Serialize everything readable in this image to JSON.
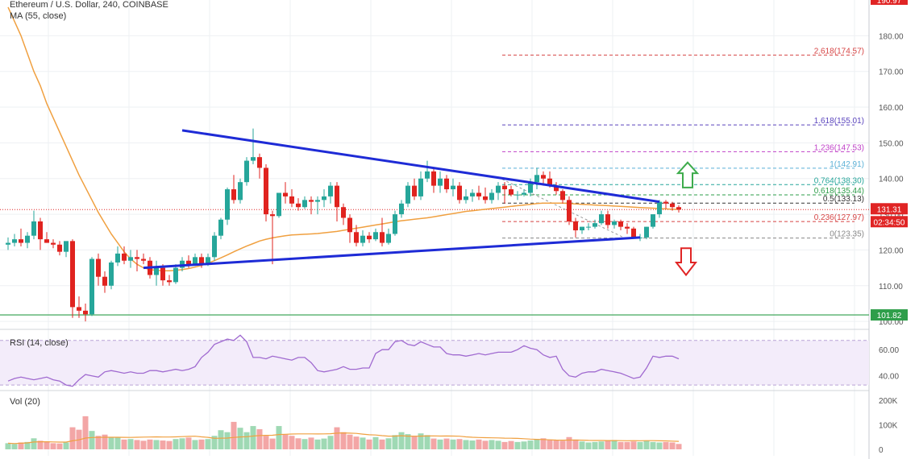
{
  "header": {
    "title": "Ethereum / U.S. Dollar, 240, COINBASE",
    "ma_label": "MA (55, close)"
  },
  "chart_data": [
    {
      "type": "candlestick",
      "title": "Ethereum / U.S. Dollar, 240, COINBASE",
      "ylim": [
        98,
        190
      ],
      "y_ticks": [
        100,
        110,
        120,
        130,
        140,
        150,
        160,
        170,
        180
      ],
      "y_tick_labels": [
        "100.00",
        "110.00",
        "120.00",
        "130.00",
        "140.00",
        "150.00",
        "160.00",
        "170.00",
        "180.00"
      ],
      "candles": [
        [
          121.5,
          123.5,
          120,
          122
        ],
        [
          122,
          124.5,
          121,
          123
        ],
        [
          123,
          126,
          121,
          122
        ],
        [
          122,
          125,
          120.5,
          124
        ],
        [
          124,
          131,
          123,
          128
        ],
        [
          128,
          129,
          120,
          123
        ],
        [
          123,
          125,
          122,
          122
        ],
        [
          122,
          123,
          120.5,
          121.5
        ],
        [
          121.5,
          122.5,
          118.5,
          119.5
        ],
        [
          119.5,
          122,
          118,
          122.5
        ],
        [
          122.5,
          123,
          101,
          104
        ],
        [
          104,
          107,
          101,
          103
        ],
        [
          103,
          105,
          100,
          102
        ],
        [
          102,
          118,
          101.5,
          117.5
        ],
        [
          117.5,
          119,
          110,
          112.5
        ],
        [
          112.5,
          114,
          108,
          110
        ],
        [
          110,
          117,
          109,
          116.5
        ],
        [
          116.5,
          121,
          115.5,
          119
        ],
        [
          119,
          121,
          116,
          117
        ],
        [
          117,
          120,
          115,
          118
        ],
        [
          118,
          120,
          114,
          117.5
        ],
        [
          117.5,
          119,
          116,
          117
        ],
        [
          117,
          118,
          112,
          113
        ],
        [
          113,
          117,
          110,
          115
        ],
        [
          115,
          116,
          110,
          111.5
        ],
        [
          111.5,
          113,
          110,
          111
        ],
        [
          111,
          116,
          110.5,
          115
        ],
        [
          115,
          118,
          114,
          117
        ],
        [
          117,
          118.5,
          115,
          116
        ],
        [
          116,
          119,
          115.5,
          118
        ],
        [
          118,
          119,
          115,
          116
        ],
        [
          116,
          119,
          115.5,
          118
        ],
        [
          118,
          125,
          117,
          124
        ],
        [
          124,
          129,
          123,
          128.5
        ],
        [
          128.5,
          137.5,
          127,
          137
        ],
        [
          137,
          141,
          133,
          134
        ],
        [
          134,
          140,
          133,
          139
        ],
        [
          139,
          146,
          138,
          145
        ],
        [
          145,
          154,
          144,
          146
        ],
        [
          146,
          147,
          140,
          143
        ],
        [
          143,
          144,
          128,
          130
        ],
        [
          130,
          131,
          116,
          129.5
        ],
        [
          129.5,
          136,
          129,
          136
        ],
        [
          136,
          139,
          133,
          135
        ],
        [
          135,
          137,
          132,
          133
        ],
        [
          133,
          134.5,
          131,
          132
        ],
        [
          132,
          135,
          131.5,
          134
        ],
        [
          134,
          135,
          130,
          133.5
        ],
        [
          133.5,
          135,
          130,
          134
        ],
        [
          134,
          137,
          132,
          135
        ],
        [
          135,
          139,
          133,
          138
        ],
        [
          138,
          139,
          128,
          132
        ],
        [
          132,
          133,
          127,
          129
        ],
        [
          129,
          130,
          122,
          125
        ],
        [
          125,
          127,
          121,
          122
        ],
        [
          122,
          125.5,
          121,
          124
        ],
        [
          124,
          125,
          122,
          123
        ],
        [
          123,
          126,
          122.5,
          125
        ],
        [
          125,
          129,
          121,
          122
        ],
        [
          122,
          126,
          121.5,
          124.5
        ],
        [
          124.5,
          131,
          124,
          130
        ],
        [
          130,
          134,
          129,
          133
        ],
        [
          133,
          139,
          132,
          138
        ],
        [
          138,
          140,
          134,
          135
        ],
        [
          135,
          142,
          134,
          140
        ],
        [
          140,
          145,
          139,
          142
        ],
        [
          142,
          143,
          136,
          138
        ],
        [
          138,
          142,
          136,
          140
        ],
        [
          140,
          141,
          136,
          137
        ],
        [
          137,
          140,
          135,
          138
        ],
        [
          138,
          139,
          133,
          134
        ],
        [
          134,
          137,
          133,
          135
        ],
        [
          135,
          137,
          133.5,
          136
        ],
        [
          136,
          138,
          134,
          135
        ],
        [
          135,
          137.5,
          133,
          134
        ],
        [
          134,
          137,
          133,
          136
        ],
        [
          136,
          139,
          134,
          138
        ],
        [
          138,
          139,
          133,
          137
        ],
        [
          137,
          138,
          135,
          135.5
        ],
        [
          135.5,
          136.5,
          134,
          135.5
        ],
        [
          135.5,
          137,
          135,
          136
        ],
        [
          136,
          140,
          135,
          139
        ],
        [
          139,
          143,
          137,
          141
        ],
        [
          141,
          142,
          138,
          140
        ],
        [
          140,
          142,
          137.5,
          138
        ],
        [
          138,
          139,
          135.5,
          136.5
        ],
        [
          136.5,
          137,
          133,
          134
        ],
        [
          134,
          135,
          127,
          128
        ],
        [
          128,
          129,
          123.5,
          125.5
        ],
        [
          125.5,
          126.5,
          124.5,
          126.5
        ],
        [
          126.5,
          127.5,
          125.5,
          126.5
        ],
        [
          126.5,
          128.5,
          126,
          127.5
        ],
        [
          127.5,
          131,
          127,
          130
        ],
        [
          130,
          131,
          126,
          127
        ],
        [
          127,
          128.5,
          126,
          128
        ],
        [
          128,
          128.5,
          125.5,
          126.5
        ],
        [
          126.5,
          127.5,
          124.5,
          126
        ],
        [
          126,
          126.5,
          124,
          123.5
        ],
        [
          123.5,
          124.5,
          122.5,
          123.5
        ],
        [
          123.5,
          126.5,
          123,
          126.5
        ],
        [
          126.5,
          130,
          126,
          130
        ],
        [
          130,
          134,
          129,
          133.5
        ],
        [
          133.5,
          134,
          131.5,
          133
        ],
        [
          133,
          133.5,
          131,
          132
        ],
        [
          132,
          132.5,
          130.5,
          131.31
        ]
      ],
      "volume": [
        25,
        22,
        28,
        30,
        45,
        35,
        32,
        25,
        24,
        28,
        90,
        80,
        135,
        75,
        55,
        60,
        50,
        48,
        40,
        42,
        38,
        35,
        40,
        38,
        36,
        34,
        42,
        45,
        48,
        38,
        40,
        42,
        55,
        78,
        70,
        112,
        88,
        70,
        95,
        82,
        55,
        44,
        95,
        60,
        55,
        45,
        42,
        48,
        40,
        44,
        55,
        90,
        70,
        60,
        52,
        48,
        40,
        50,
        40,
        45,
        58,
        70,
        62,
        55,
        65,
        58,
        44,
        40,
        44,
        40,
        42,
        38,
        36,
        40,
        35,
        38,
        35,
        30,
        34,
        30,
        32,
        36,
        40,
        45,
        40,
        38,
        35,
        50,
        40,
        32,
        28,
        30,
        32,
        35,
        38,
        30,
        30,
        32,
        30,
        35,
        30,
        28,
        30,
        28,
        22
      ],
      "ma": {
        "name": "MA (55, close)",
        "values": [
          188,
          184,
          180,
          175,
          170,
          166,
          161,
          157,
          153,
          149,
          145,
          141,
          137.5,
          134,
          130.5,
          127.5,
          124.5,
          122,
          119.5,
          117.5,
          116,
          115,
          114.5,
          114.3,
          114.2,
          114.2,
          114.3,
          114.5,
          114.8,
          115.2,
          115.7,
          116.3,
          117,
          117.8,
          118.6,
          119.5,
          120.3,
          121.1,
          121.8,
          122.5,
          123,
          123.4,
          123.7,
          124,
          124.2,
          124.3,
          124.4,
          124.5,
          124.6,
          124.8,
          125,
          125.2,
          125.5,
          125.8,
          126.1,
          126.4,
          126.7,
          127,
          127.3,
          127.6,
          127.9,
          128.2,
          128.4,
          128.6,
          128.8,
          129,
          129.3,
          129.6,
          129.9,
          130.2,
          130.5,
          130.8,
          131,
          131.2,
          131.4,
          131.6,
          131.8,
          132,
          132.2,
          132.4,
          132.6,
          132.8,
          133,
          133.1,
          133.1,
          133.1,
          133.1,
          133.0,
          132.9,
          132.8,
          132.7,
          132.6,
          132.5,
          132.4,
          132.3,
          132.2,
          132.1,
          132,
          131.9,
          131.8,
          131.7,
          131.6,
          131.5,
          131.4,
          131.4
        ]
      },
      "trendlines": [
        {
          "name": "upper",
          "from": [
            27,
            153.5
          ],
          "to": [
            101,
            133.5
          ]
        },
        {
          "name": "lower",
          "from": [
            21,
            115
          ],
          "to": [
            98,
            123.5
          ]
        }
      ],
      "fibonacci": [
        {
          "ratio": "2.618",
          "price": 174.57,
          "color": "#d64545"
        },
        {
          "ratio": "1.618",
          "price": 155.01,
          "color": "#5a44bd"
        },
        {
          "ratio": "1.236",
          "price": 147.53,
          "color": "#c042c8"
        },
        {
          "ratio": "1",
          "price": 142.91,
          "color": "#5ab0d6"
        },
        {
          "ratio": "0.764",
          "price": 138.3,
          "color": "#26a69a"
        },
        {
          "ratio": "0.618",
          "price": 135.44,
          "color": "#2e9e4a"
        },
        {
          "ratio": "0.5",
          "price": 133.13,
          "color": "#333333"
        },
        {
          "ratio": "0.236",
          "price": 127.97,
          "color": "#d64545"
        },
        {
          "ratio": "0",
          "price": 123.35,
          "color": "#888888"
        }
      ],
      "fib_labels": [
        "2.618(174.57)",
        "1.618(155.01)",
        "1.236(147.53)",
        "1(142.91)",
        "0.764(138.30)",
        "0.618(135.44)",
        "0.5(133.13)",
        "0.236(127.97)",
        "0(123.35)"
      ],
      "support_level": {
        "price": 101.82,
        "label": "101.82",
        "color": "#2e9e4a"
      },
      "current_price": {
        "price": 131.31,
        "label": "131.31",
        "countdown": "02:34:50",
        "color": "#e02424"
      },
      "top_price_label": "190.97",
      "arrows": {
        "up_color": "#3dab4b",
        "down_color": "#e02424"
      },
      "colors": {
        "up": "#26a69a",
        "down": "#e0231f",
        "ma": "#f0a040",
        "trend": "#1e2bd6"
      }
    },
    {
      "type": "line",
      "title": "RSI (14, close)",
      "ylim": [
        30,
        73
      ],
      "y_ticks": [
        40,
        60
      ],
      "y_tick_labels": [
        "40.00",
        "60.00"
      ],
      "bands": [
        33,
        67
      ],
      "color": "#a06ad0",
      "values": [
        36,
        38,
        39,
        38,
        37,
        38,
        39,
        37,
        36,
        33,
        32,
        37,
        41,
        40,
        39,
        43,
        44,
        43,
        42,
        43,
        42,
        42,
        44,
        44,
        43,
        44,
        45,
        44,
        45,
        47,
        54,
        58,
        64,
        66,
        68,
        67,
        71,
        66,
        54,
        54,
        53,
        55,
        54,
        53,
        52,
        54,
        54,
        50,
        44,
        43,
        44,
        45,
        47,
        45,
        45,
        46,
        46,
        57,
        60,
        60,
        66,
        67,
        64,
        63,
        66,
        64,
        62,
        62,
        57,
        56,
        56,
        55,
        56,
        57,
        56,
        57,
        58,
        58,
        58,
        60,
        63,
        61,
        60,
        56,
        54,
        55,
        45,
        40,
        39,
        42,
        43,
        43,
        45,
        44,
        43,
        42,
        40,
        38,
        39,
        46,
        55,
        54,
        55,
        55,
        53
      ]
    },
    {
      "type": "bar",
      "title": "Vol (20)",
      "y_ticks": [
        0,
        100,
        200
      ],
      "y_tick_labels": [
        "0",
        "100K",
        "200K"
      ],
      "note": "bars use volume values from the first chart"
    }
  ]
}
